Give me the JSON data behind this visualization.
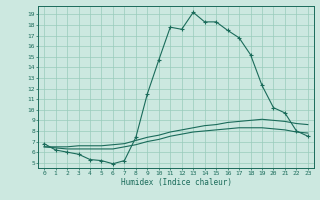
{
  "title": "",
  "xlabel": "Humidex (Indice chaleur)",
  "ylabel": "",
  "xlim": [
    -0.5,
    23.5
  ],
  "ylim": [
    4.5,
    19.8
  ],
  "xticks": [
    0,
    1,
    2,
    3,
    4,
    5,
    6,
    7,
    8,
    9,
    10,
    11,
    12,
    13,
    14,
    15,
    16,
    17,
    18,
    19,
    20,
    21,
    22,
    23
  ],
  "yticks": [
    5,
    6,
    7,
    8,
    9,
    10,
    11,
    12,
    13,
    14,
    15,
    16,
    17,
    18,
    19
  ],
  "bg_color": "#cce8e0",
  "grid_color": "#99ccbb",
  "line_color": "#1a6b5a",
  "main_x": [
    0,
    1,
    2,
    3,
    4,
    5,
    6,
    7,
    8,
    9,
    10,
    11,
    12,
    13,
    14,
    15,
    16,
    17,
    18,
    19,
    20,
    21,
    22,
    23
  ],
  "main_y": [
    6.8,
    6.2,
    6.0,
    5.8,
    5.3,
    5.2,
    4.9,
    5.2,
    7.4,
    11.5,
    14.7,
    17.8,
    17.6,
    19.2,
    18.3,
    18.3,
    17.5,
    16.8,
    15.2,
    12.3,
    10.2,
    9.7,
    8.0,
    7.5
  ],
  "ref1_x": [
    0,
    1,
    2,
    3,
    4,
    5,
    6,
    7,
    8,
    9,
    10,
    11,
    12,
    13,
    14,
    15,
    16,
    17,
    18,
    19,
    20,
    21,
    22,
    23
  ],
  "ref1_y": [
    6.5,
    6.5,
    6.5,
    6.6,
    6.6,
    6.6,
    6.7,
    6.8,
    7.1,
    7.4,
    7.6,
    7.9,
    8.1,
    8.3,
    8.5,
    8.6,
    8.8,
    8.9,
    9.0,
    9.1,
    9.0,
    8.9,
    8.7,
    8.6
  ],
  "ref2_x": [
    0,
    1,
    2,
    3,
    4,
    5,
    6,
    7,
    8,
    9,
    10,
    11,
    12,
    13,
    14,
    15,
    16,
    17,
    18,
    19,
    20,
    21,
    22,
    23
  ],
  "ref2_y": [
    6.5,
    6.4,
    6.3,
    6.3,
    6.3,
    6.3,
    6.3,
    6.5,
    6.7,
    7.0,
    7.2,
    7.5,
    7.7,
    7.9,
    8.0,
    8.1,
    8.2,
    8.3,
    8.3,
    8.3,
    8.2,
    8.1,
    7.9,
    7.8
  ]
}
